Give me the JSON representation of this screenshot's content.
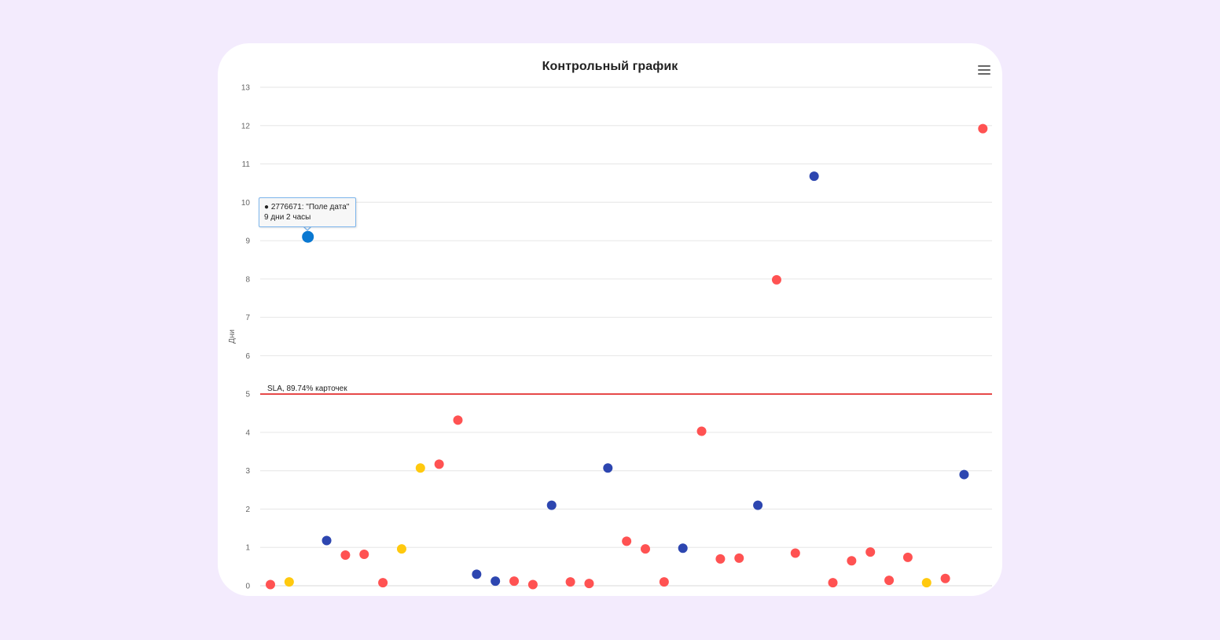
{
  "chart_data": {
    "type": "scatter",
    "title": "Контрольный график",
    "xlabel": "",
    "ylabel": "Дни",
    "ylim": [
      0,
      13
    ],
    "yticks": [
      0,
      1,
      2,
      3,
      4,
      5,
      6,
      7,
      8,
      9,
      10,
      11,
      12,
      13
    ],
    "grid": true,
    "threshold": {
      "value": 5,
      "label": "SLA, 89.74% карточек",
      "color": "#e02020"
    },
    "colors": {
      "red": "#ff5252",
      "blue": "#2d46b0",
      "yellow": "#ffc90e",
      "highlight": "#0a78d1"
    },
    "points": [
      {
        "y": 0.03,
        "color": "red"
      },
      {
        "y": 0.1,
        "color": "yellow"
      },
      {
        "y": 9.1,
        "color": "highlight"
      },
      {
        "y": 1.18,
        "color": "blue"
      },
      {
        "y": 0.8,
        "color": "red"
      },
      {
        "y": 0.82,
        "color": "red"
      },
      {
        "y": 0.08,
        "color": "red"
      },
      {
        "y": 0.96,
        "color": "yellow"
      },
      {
        "y": 3.07,
        "color": "yellow"
      },
      {
        "y": 3.17,
        "color": "red"
      },
      {
        "y": 4.32,
        "color": "red"
      },
      {
        "y": 0.3,
        "color": "blue"
      },
      {
        "y": 0.12,
        "color": "blue"
      },
      {
        "y": 0.12,
        "color": "red"
      },
      {
        "y": 0.03,
        "color": "red"
      },
      {
        "y": 2.1,
        "color": "blue"
      },
      {
        "y": 0.1,
        "color": "red"
      },
      {
        "y": 0.06,
        "color": "red"
      },
      {
        "y": 3.07,
        "color": "blue"
      },
      {
        "y": 1.16,
        "color": "red"
      },
      {
        "y": 0.96,
        "color": "red"
      },
      {
        "y": 0.1,
        "color": "red"
      },
      {
        "y": 0.98,
        "color": "blue"
      },
      {
        "y": 4.03,
        "color": "red"
      },
      {
        "y": 0.7,
        "color": "red"
      },
      {
        "y": 0.72,
        "color": "red"
      },
      {
        "y": 2.1,
        "color": "blue"
      },
      {
        "y": 7.98,
        "color": "red"
      },
      {
        "y": 0.85,
        "color": "red"
      },
      {
        "y": 10.68,
        "color": "blue"
      },
      {
        "y": 0.08,
        "color": "red"
      },
      {
        "y": 0.65,
        "color": "red"
      },
      {
        "y": 0.88,
        "color": "red"
      },
      {
        "y": 0.14,
        "color": "red"
      },
      {
        "y": 0.74,
        "color": "red"
      },
      {
        "y": 0.08,
        "color": "yellow"
      },
      {
        "y": 0.19,
        "color": "red"
      },
      {
        "y": 2.9,
        "color": "blue"
      },
      {
        "y": 11.92,
        "color": "red"
      }
    ],
    "tooltip": {
      "point_index": 2,
      "line1": "● 2776671: \"Поле дата\"",
      "line2": "9 дни 2 часы"
    }
  },
  "menu": {
    "icon": "hamburger-menu-icon"
  }
}
